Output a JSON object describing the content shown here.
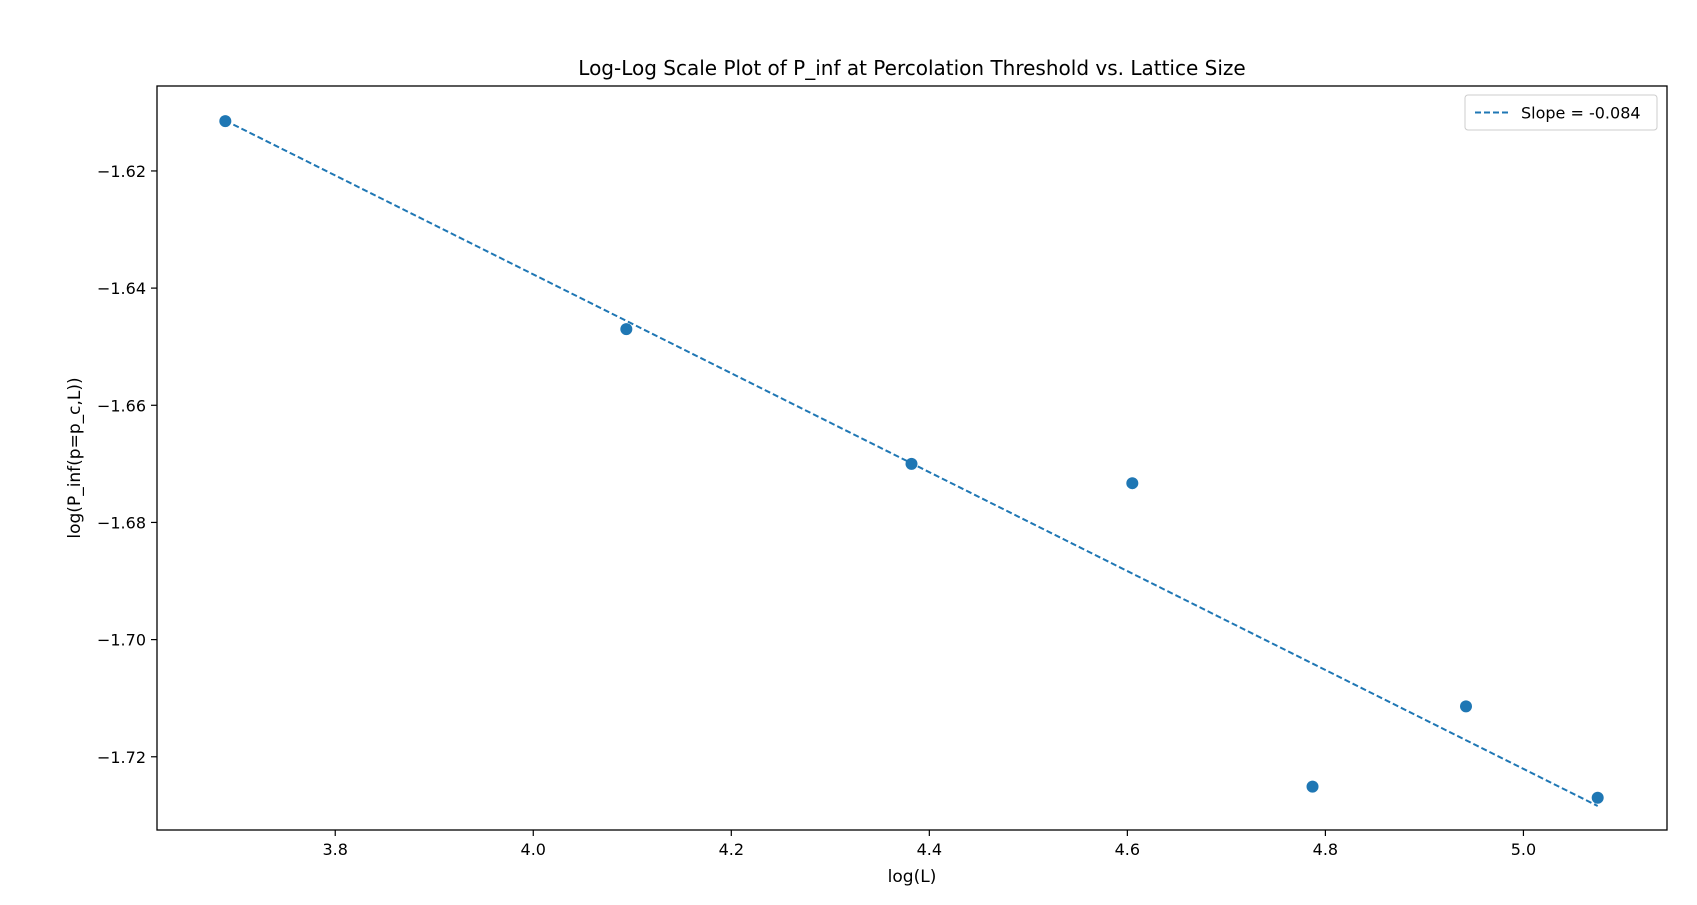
{
  "chart_data": {
    "type": "scatter",
    "title": "Log-Log Scale Plot of P_inf at Percolation Threshold vs. Lattice Size",
    "xlabel": "log(L)",
    "ylabel": "log(P_inf(p=p_c,L))",
    "xlim": [
      3.62,
      5.145
    ],
    "ylim": [
      -1.7325,
      -1.6055
    ],
    "xticks": [
      3.8,
      4.0,
      4.2,
      4.4,
      4.6,
      4.8,
      5.0
    ],
    "xtick_labels": [
      "3.8",
      "4.0",
      "4.2",
      "4.4",
      "4.6",
      "4.8",
      "5.0"
    ],
    "yticks": [
      -1.62,
      -1.64,
      -1.66,
      -1.68,
      -1.7,
      -1.72
    ],
    "ytick_labels": [
      "−1.62",
      "−1.64",
      "−1.66",
      "−1.68",
      "−1.70",
      "−1.72"
    ],
    "points": {
      "x": [
        3.689,
        4.094,
        4.382,
        4.605,
        4.787,
        4.942,
        5.075
      ],
      "y": [
        -1.6115,
        -1.647,
        -1.67,
        -1.6733,
        -1.7251,
        -1.7114,
        -1.727
      ]
    },
    "fit_line": {
      "label": "Slope = -0.084",
      "x": [
        3.689,
        5.075
      ],
      "y": [
        -1.6114,
        -1.7284
      ]
    },
    "grid": false,
    "legend_position": "upper right",
    "colors": {
      "series": "#1f77b4",
      "axes": "#000000"
    }
  }
}
